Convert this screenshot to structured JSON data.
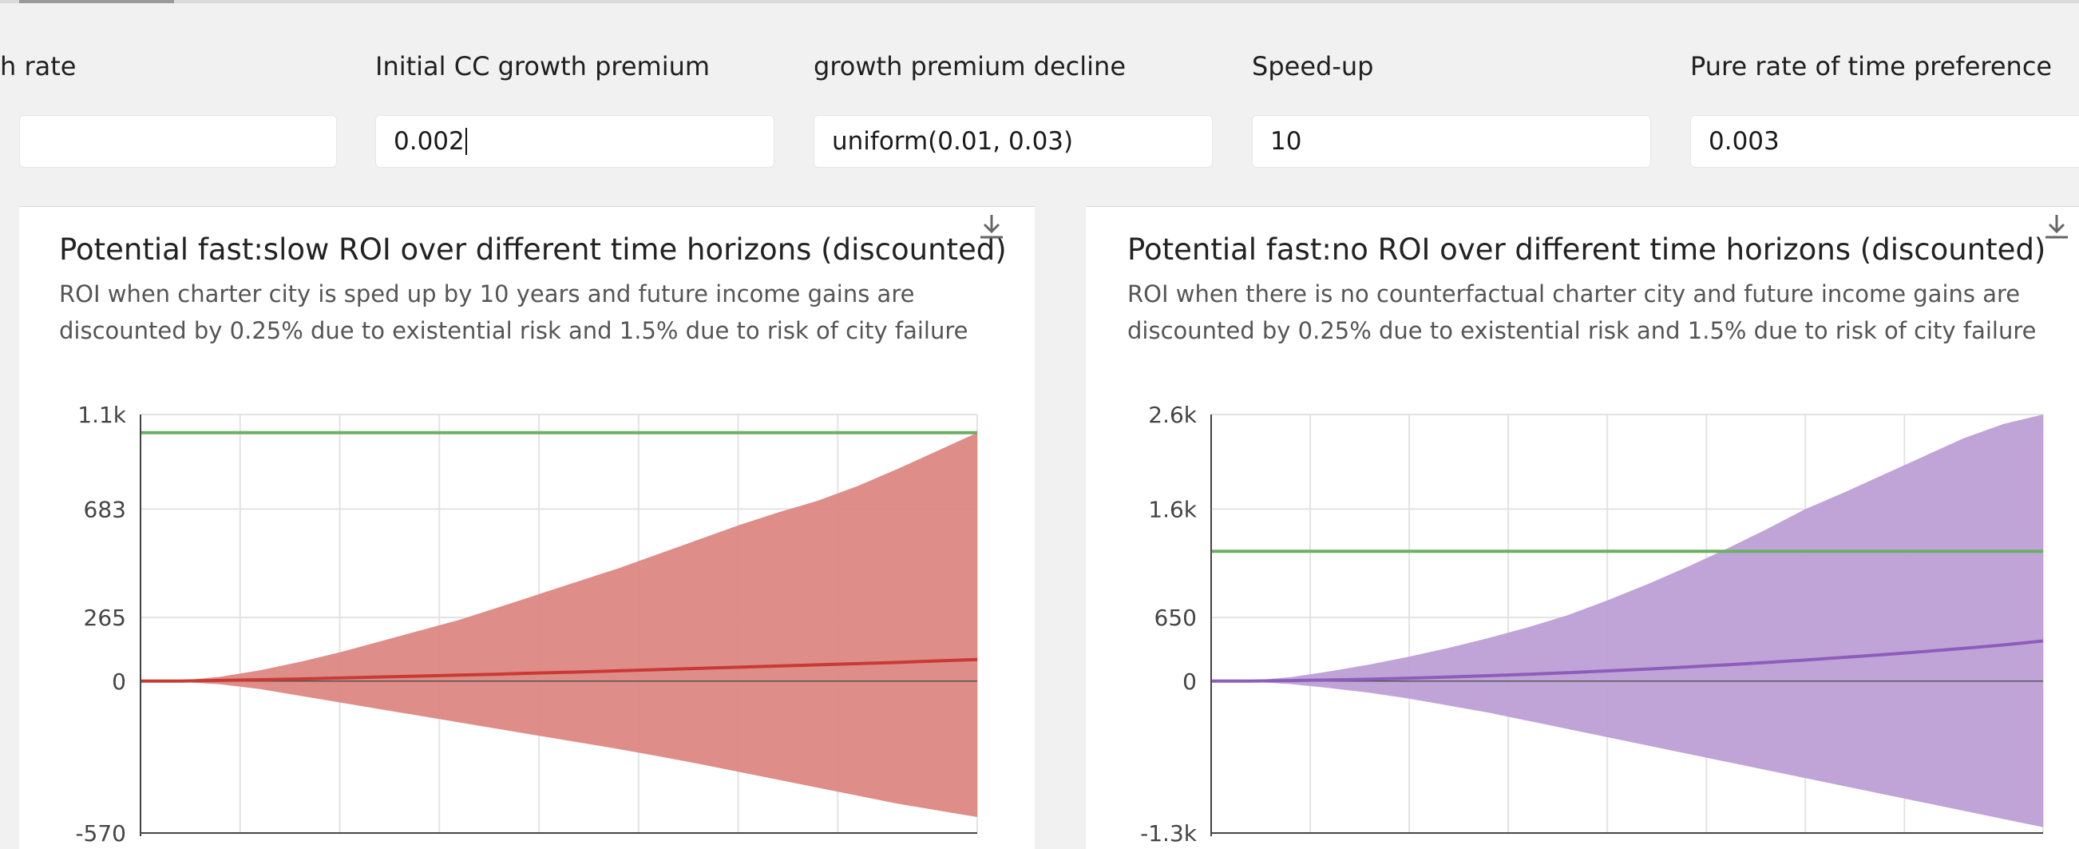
{
  "params": [
    {
      "label": "h rate",
      "value": ""
    },
    {
      "label": "Initial CC growth premium",
      "value": "0.002"
    },
    {
      "label": "growth premium decline",
      "value": "uniform(0.01, 0.03)"
    },
    {
      "label": "Speed-up",
      "value": "10"
    },
    {
      "label": "Pure rate of time preference",
      "value": "0.003"
    }
  ],
  "charts": [
    {
      "title": "Potential fast:slow ROI over different time horizons (discounted)",
      "subtitle_line1": "ROI when charter city is sped up by 10 years and future income gains are",
      "subtitle_line2": "discounted by 0.25% due to existential risk and 1.5% due to risk of city failure",
      "download_icon": "download-icon"
    },
    {
      "title": "Potential fast:no ROI over different time horizons (discounted)",
      "subtitle_line1": "ROI when there is no counterfactual charter city and future income gains are",
      "subtitle_line2": "discounted by 0.25% due to existential risk and 1.5% due to risk of city failure",
      "download_icon": "download-icon"
    }
  ],
  "chart_data": [
    {
      "type": "area",
      "title": "Potential fast:slow ROI over different time horizons (discounted)",
      "xlim": [
        2000,
        2084
      ],
      "yticks": [
        {
          "label": "1.1k",
          "value": 1100
        },
        {
          "label": "683",
          "value": 683
        },
        {
          "label": "265",
          "value": 265
        },
        {
          "label": "0",
          "value": 0
        },
        {
          "label": "-570",
          "value": -570
        }
      ],
      "ylim": [
        -570,
        1100
      ],
      "x_grid": [
        2000,
        2010,
        2020,
        2030,
        2040,
        2050,
        2060,
        2070,
        2084
      ],
      "reference_line": {
        "value": 1020,
        "color": "#6ab064"
      },
      "band_color": "#dc8782",
      "median_color": "#c93a35",
      "x": [
        2000,
        2004,
        2008,
        2012,
        2016,
        2020,
        2024,
        2028,
        2032,
        2036,
        2040,
        2044,
        2048,
        2052,
        2056,
        2060,
        2064,
        2068,
        2072,
        2076,
        2080,
        2084
      ],
      "median": [
        0,
        0,
        3,
        6,
        9,
        13,
        17,
        21,
        25,
        29,
        34,
        38,
        43,
        48,
        53,
        58,
        63,
        68,
        73,
        78,
        84,
        90
      ],
      "upper": [
        0,
        2,
        18,
        45,
        80,
        120,
        165,
        210,
        255,
        305,
        355,
        405,
        455,
        510,
        565,
        620,
        670,
        720,
        785,
        860,
        940,
        1020
      ],
      "lower": [
        0,
        -3,
        -12,
        -30,
        -55,
        -80,
        -105,
        -130,
        -155,
        -180,
        -205,
        -230,
        -255,
        -282,
        -310,
        -340,
        -370,
        -400,
        -430,
        -460,
        -485,
        -510
      ]
    },
    {
      "type": "area",
      "title": "Potential fast:no ROI over different time horizons (discounted)",
      "xlim": [
        2000,
        2084
      ],
      "yticks": [
        {
          "label": "2.6k",
          "value": 2600
        },
        {
          "label": "1.6k",
          "value": 1600
        },
        {
          "label": "650",
          "value": 650
        },
        {
          "label": "0",
          "value": 0
        },
        {
          "label": "-1.3k",
          "value": -1300
        }
      ],
      "ylim": [
        -1300,
        2600
      ],
      "x_grid": [
        2000,
        2010,
        2020,
        2030,
        2040,
        2050,
        2060,
        2070,
        2084
      ],
      "reference_line": {
        "value": 1230,
        "color": "#6ab064"
      },
      "band_color": "#bd9fd6",
      "median_color": "#8d5dbb",
      "x": [
        2000,
        2004,
        2008,
        2012,
        2016,
        2020,
        2024,
        2028,
        2032,
        2036,
        2040,
        2044,
        2048,
        2052,
        2056,
        2060,
        2064,
        2068,
        2072,
        2076,
        2080,
        2084
      ],
      "median": [
        0,
        0,
        5,
        12,
        20,
        30,
        42,
        55,
        70,
        86,
        104,
        123,
        144,
        166,
        190,
        216,
        243,
        272,
        302,
        335,
        370,
        410
      ],
      "upper": [
        0,
        5,
        40,
        100,
        170,
        250,
        340,
        440,
        550,
        670,
        800,
        940,
        1090,
        1250,
        1420,
        1600,
        1780,
        1970,
        2160,
        2350,
        2500,
        2600
      ],
      "lower": [
        0,
        -5,
        -25,
        -60,
        -100,
        -150,
        -210,
        -270,
        -340,
        -410,
        -480,
        -550,
        -620,
        -690,
        -760,
        -830,
        -900,
        -970,
        -1040,
        -1110,
        -1180,
        -1250
      ]
    }
  ]
}
